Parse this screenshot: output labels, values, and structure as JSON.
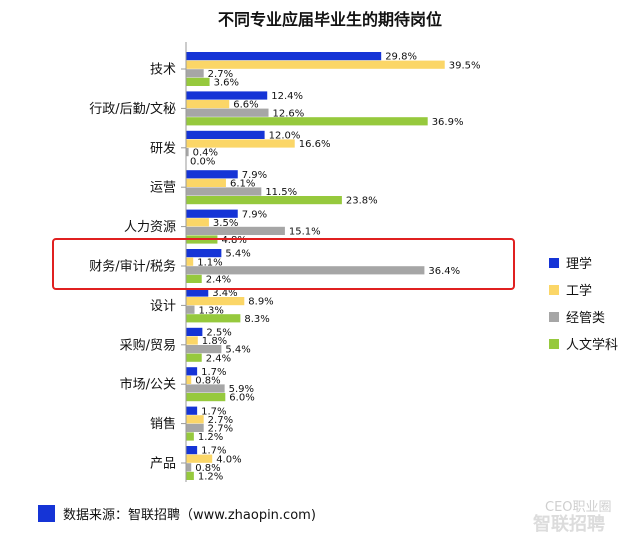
{
  "chart_data": {
    "type": "bar",
    "orientation": "horizontal",
    "title": "不同专业应届毕业生的期待岗位",
    "categories": [
      "技术",
      "行政/后勤/文秘",
      "研发",
      "运营",
      "人力资源",
      "财务/审计/税务",
      "设计",
      "采购/贸易",
      "市场/公关",
      "销售",
      "产品"
    ],
    "series": [
      {
        "name": "理学",
        "color": "#1534d6",
        "values": [
          29.8,
          12.4,
          12.0,
          7.9,
          7.9,
          5.4,
          3.4,
          2.5,
          1.7,
          1.7,
          1.7
        ]
      },
      {
        "name": "工学",
        "color": "#fbd667",
        "values": [
          39.5,
          6.6,
          16.6,
          6.1,
          3.5,
          1.1,
          8.9,
          1.8,
          0.8,
          2.7,
          4.0
        ]
      },
      {
        "name": "经管类",
        "color": "#a6a6a6",
        "values": [
          2.7,
          12.6,
          0.4,
          11.5,
          15.1,
          36.4,
          1.3,
          5.4,
          5.9,
          2.7,
          0.8
        ]
      },
      {
        "name": "人文学科",
        "color": "#96c93d",
        "values": [
          3.6,
          36.9,
          0.0,
          23.8,
          4.8,
          2.4,
          8.3,
          2.4,
          6.0,
          1.2,
          1.2
        ]
      }
    ],
    "value_suffix": "%",
    "highlight": {
      "category": "财务/审计/税务",
      "color": "#e02020"
    },
    "legend_position": "right",
    "grid": false
  },
  "footer": {
    "source": "数据来源：智联招聘（www.zhaopin.com)",
    "source_swatch_color": "#1534d6"
  },
  "watermark": {
    "account": "CEO职业圈",
    "brand": "智联招聘"
  }
}
